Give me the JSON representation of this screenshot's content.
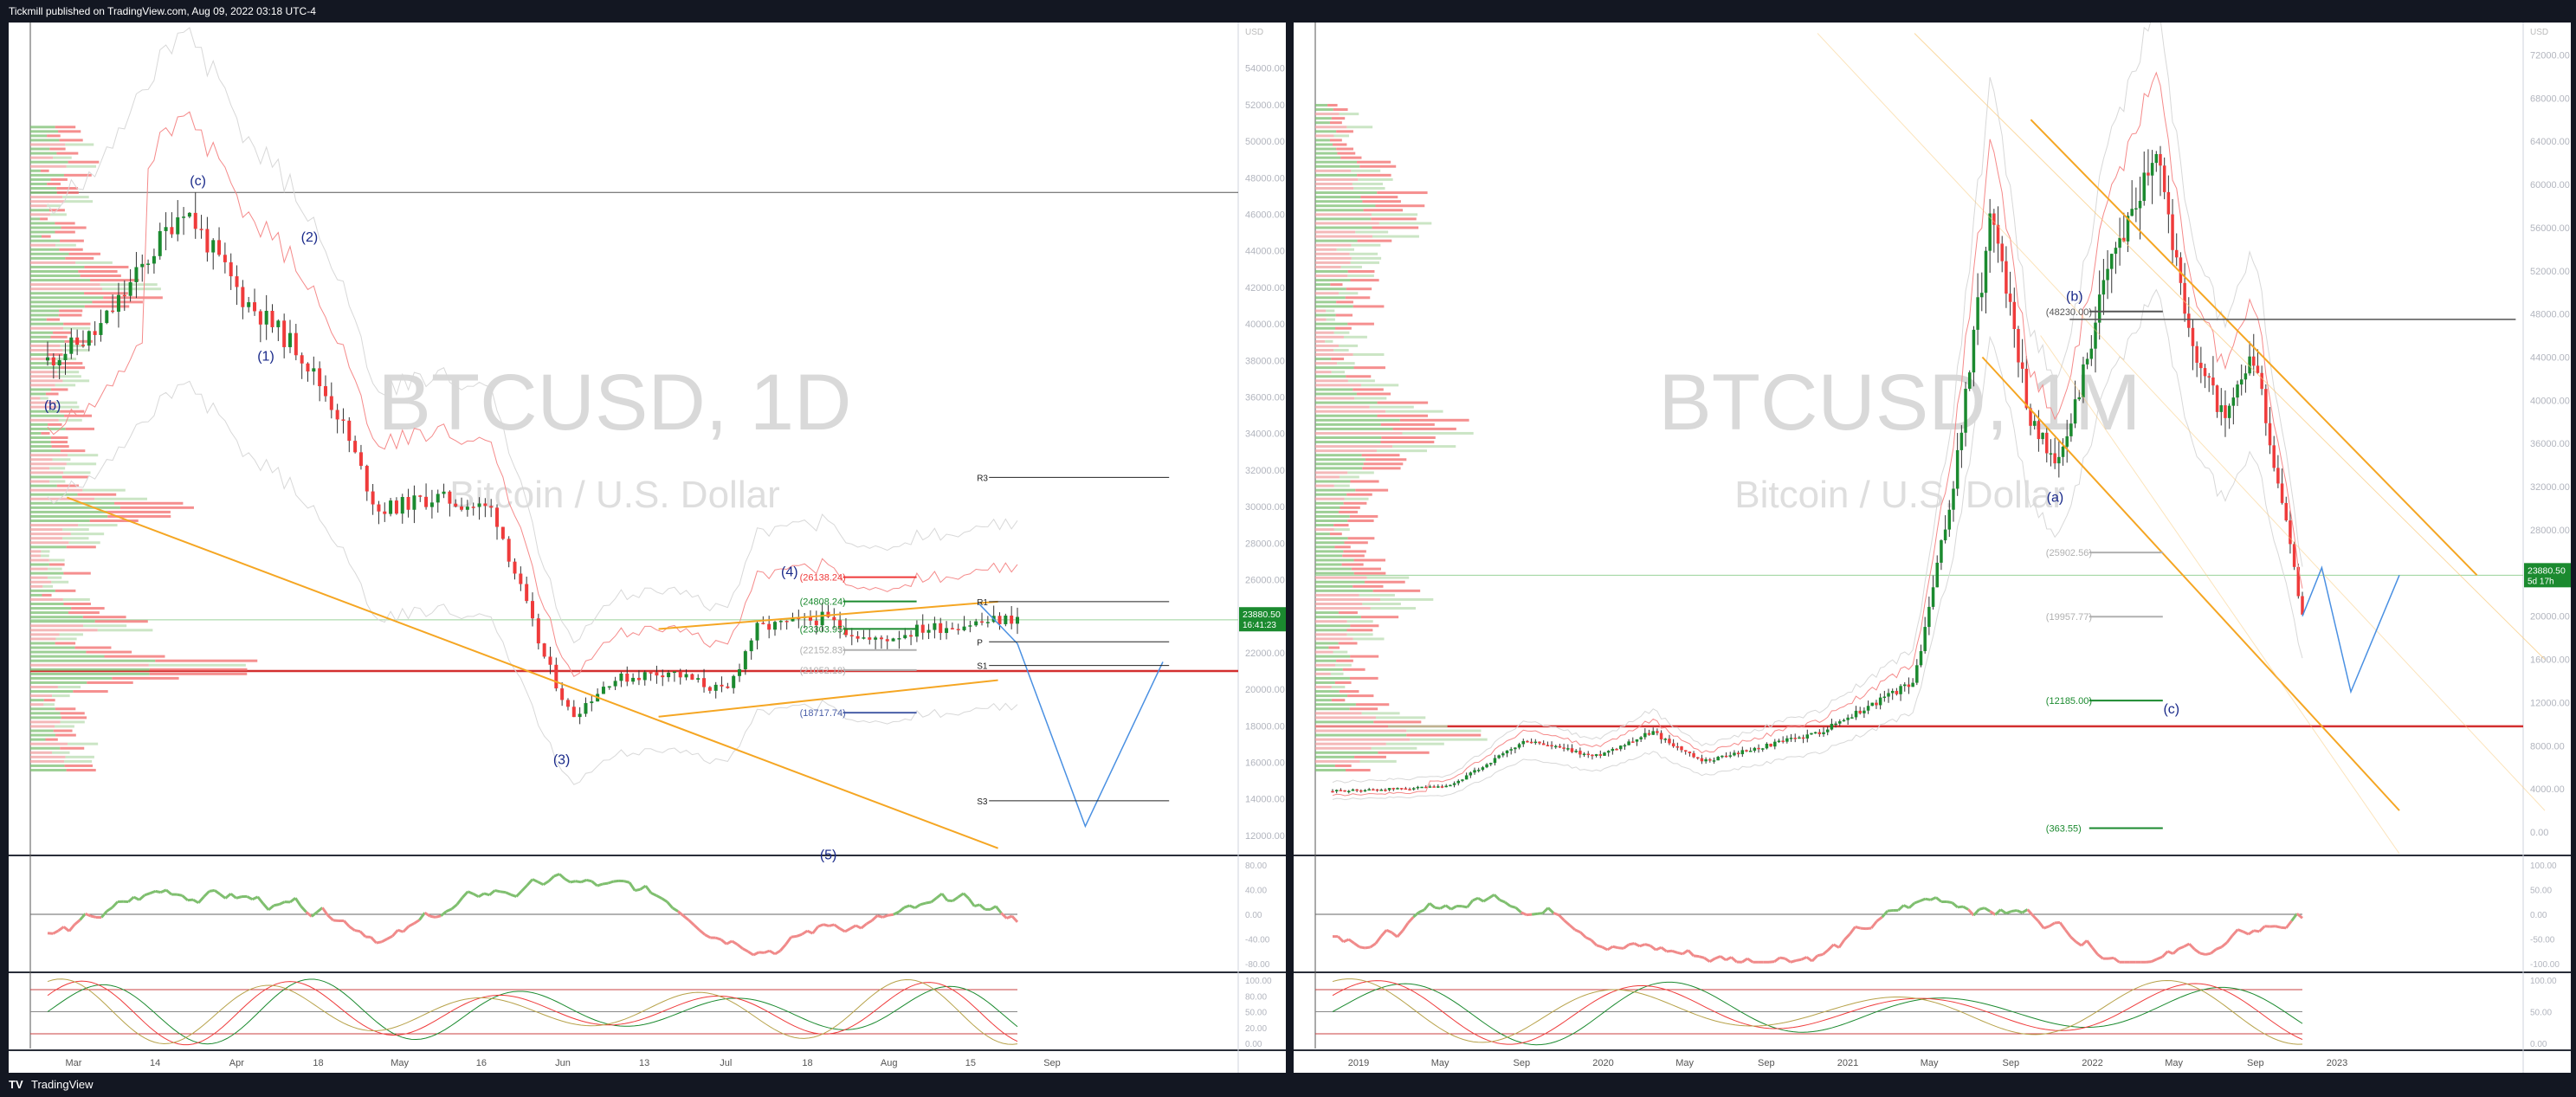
{
  "header": {
    "publisher_text": "Tickmill published on TradingView.com, Aug 09, 2022 03:18 UTC-4"
  },
  "footer": {
    "logo_text": "TV",
    "brand": "TradingView"
  },
  "colors": {
    "up": "#1b8a2f",
    "down": "#ef3b3b",
    "osc_up": "#7fbf6f",
    "osc_down": "#f08a8a",
    "wedge": "#f5a623",
    "projection": "#4a90e2"
  },
  "chart_data": [
    {
      "type": "candlestick",
      "symbol": "BTCUSD, 1D",
      "description": "Bitcoin / U.S. Dollar",
      "currency": "USD",
      "ylim": [
        11000,
        56500
      ],
      "y_ticks": [
        "54000.00",
        "52000.00",
        "50000.00",
        "48000.00",
        "46000.00",
        "44000.00",
        "42000.00",
        "40000.00",
        "38000.00",
        "36000.00",
        "34000.00",
        "32000.00",
        "30000.00",
        "28000.00",
        "26000.00",
        "24000.00",
        "22000.00",
        "20000.00",
        "18000.00",
        "16000.00",
        "14000.00",
        "12000.00"
      ],
      "x_ticks": [
        "Mar",
        "14",
        "Apr",
        "18",
        "May",
        "16",
        "Jun",
        "13",
        "Jul",
        "18",
        "Aug",
        "15",
        "Sep"
      ],
      "last_price": "23880.50",
      "countdown": "16:41:23",
      "wave_labels": [
        {
          "text": "(c)",
          "x": 0.155,
          "price": 47600
        },
        {
          "text": "(b)",
          "x": 0.005,
          "price": 35300
        },
        {
          "text": "(1)",
          "x": 0.225,
          "price": 38000
        },
        {
          "text": "(2)",
          "x": 0.27,
          "price": 44500
        },
        {
          "text": "(3)",
          "x": 0.53,
          "price": 15900
        },
        {
          "text": "(4)",
          "x": 0.765,
          "price": 26200
        },
        {
          "text": "(5)",
          "x": 0.805,
          "price": 10700
        }
      ],
      "levels": [
        {
          "label": "(26138.24)",
          "price": 26138.24,
          "color": "#ef3b3b"
        },
        {
          "label": "(24808.24)",
          "price": 24808.24,
          "color": "#1b8a2f"
        },
        {
          "label": "(23303.95)",
          "price": 23303.95,
          "color": "#1b8a2f"
        },
        {
          "label": "(22152.83)",
          "price": 22152.83,
          "color": "#b0b0b0"
        },
        {
          "label": "(21052.18)",
          "price": 21052.18,
          "color": "#b0b0b0"
        },
        {
          "label": "(18717.74)",
          "price": 18717.74,
          "color": "#4a5fa8"
        }
      ],
      "pivots": [
        {
          "label": "R3",
          "price": 31600
        },
        {
          "label": "R1",
          "price": 24800
        },
        {
          "label": "P",
          "price": 22600
        },
        {
          "label": "S1",
          "price": 21300
        },
        {
          "label": "S3",
          "price": 13900
        }
      ],
      "horizontal_lines": [
        {
          "price": 47200,
          "color": "#555555"
        },
        {
          "price": 21000,
          "color": "#d32f2f"
        },
        {
          "price": 23800,
          "color": "#9ad29a"
        }
      ],
      "oscillator_ticks": [
        "80.00",
        "40.00",
        "0.00",
        "-40.00",
        "-80.00"
      ],
      "stoch_ticks": [
        "100.00",
        "80.00",
        "50.00",
        "20.00",
        "0.00"
      ]
    },
    {
      "type": "candlestick",
      "symbol": "BTCUSD, 1M",
      "description": "Bitcoin / U.S. Dollar",
      "currency": "USD",
      "ylim": [
        -2000,
        75000
      ],
      "y_ticks": [
        "72000.00",
        "68000.00",
        "64000.00",
        "60000.00",
        "56000.00",
        "52000.00",
        "48000.00",
        "44000.00",
        "40000.00",
        "36000.00",
        "32000.00",
        "28000.00",
        "24000.00",
        "20000.00",
        "16000.00",
        "12000.00",
        "8000.00",
        "4000.00",
        "0.00"
      ],
      "x_ticks": [
        "2019",
        "May",
        "Sep",
        "2020",
        "May",
        "Sep",
        "2021",
        "May",
        "Sep",
        "2022",
        "May",
        "Sep",
        "2023"
      ],
      "last_price": "23880.50",
      "countdown": "5d 17h",
      "wave_labels": [
        {
          "text": "(b)",
          "x": 0.765,
          "price": 49200
        },
        {
          "text": "(a)",
          "x": 0.745,
          "price": 30600
        },
        {
          "text": "(c)",
          "x": 0.865,
          "price": 11000
        }
      ],
      "levels": [
        {
          "label": "(48230.00)",
          "price": 48230,
          "color": "#555555"
        },
        {
          "label": "(25902.56)",
          "price": 25902.56,
          "color": "#b0b0b0"
        },
        {
          "label": "(19957.77)",
          "price": 19957.77,
          "color": "#b0b0b0"
        },
        {
          "label": "(12185.00)",
          "price": 12185,
          "color": "#1b8a2f"
        },
        {
          "label": "(363.55)",
          "price": 363.55,
          "color": "#1b8a2f"
        }
      ],
      "horizontal_lines": [
        {
          "price": 9800,
          "color": "#d32f2f"
        },
        {
          "price": 23800,
          "color": "#9ad29a"
        }
      ],
      "oscillator_ticks": [
        "100.00",
        "50.00",
        "0.00",
        "-50.00",
        "-100.00"
      ],
      "stoch_ticks": [
        "100.00",
        "50.00",
        "0.00"
      ]
    }
  ]
}
